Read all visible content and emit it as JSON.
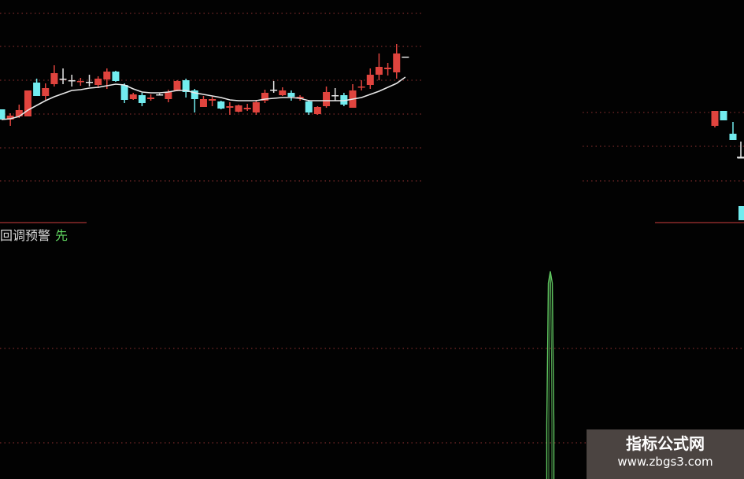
{
  "chart_data": [
    {
      "type": "candlestick",
      "grid": true,
      "colors": {
        "up": "#e0443e",
        "down": "#72ecef",
        "doji": "#e6e6e6",
        "ma": "#e8e8e8",
        "grid": "#7a2a2a",
        "background": "#020202"
      },
      "candles": [
        [
          6.1,
          6.1,
          4.8,
          4.8
        ],
        [
          4.8,
          5.6,
          4.0,
          5.3
        ],
        [
          5.2,
          6.7,
          5.0,
          6.0
        ],
        [
          5.2,
          8.5,
          5.2,
          8.5
        ],
        [
          9.5,
          10.0,
          7.8,
          7.8
        ],
        [
          7.8,
          9.4,
          7.3,
          8.8
        ],
        [
          9.3,
          11.7,
          9.0,
          10.7
        ],
        [
          10.0,
          11.3,
          9.3,
          10.0
        ],
        [
          9.8,
          10.5,
          9.0,
          9.8
        ],
        [
          9.6,
          10.1,
          9.1,
          9.7
        ],
        [
          9.6,
          10.5,
          9.0,
          9.6
        ],
        [
          9.2,
          10.3,
          8.8,
          10.0
        ],
        [
          9.9,
          11.3,
          8.7,
          10.9
        ],
        [
          10.9,
          11.0,
          9.6,
          9.7
        ],
        [
          9.2,
          9.4,
          6.9,
          7.3
        ],
        [
          7.4,
          8.2,
          7.3,
          8.0
        ],
        [
          7.9,
          8.2,
          6.5,
          6.9
        ],
        [
          7.4,
          8.0,
          7.2,
          7.6
        ],
        [
          8.0,
          8.1,
          7.9,
          8.0
        ],
        [
          7.4,
          8.6,
          7.0,
          8.3
        ],
        [
          8.5,
          9.8,
          8.4,
          9.7
        ],
        [
          9.8,
          10.0,
          7.6,
          8.3
        ],
        [
          8.5,
          8.7,
          5.7,
          7.4
        ],
        [
          6.4,
          7.8,
          6.4,
          7.4
        ],
        [
          7.2,
          7.7,
          6.5,
          7.4
        ],
        [
          7.1,
          7.2,
          6.1,
          6.2
        ],
        [
          6.3,
          7.0,
          5.4,
          6.5
        ],
        [
          5.8,
          6.7,
          5.7,
          6.6
        ],
        [
          6.1,
          6.8,
          5.9,
          6.3
        ],
        [
          5.7,
          7.3,
          5.4,
          7.0
        ],
        [
          7.2,
          8.6,
          6.9,
          8.2
        ],
        [
          8.6,
          9.7,
          8.2,
          8.6
        ],
        [
          7.9,
          8.9,
          7.8,
          8.5
        ],
        [
          8.2,
          8.5,
          7.2,
          7.7
        ],
        [
          7.5,
          7.9,
          7.2,
          7.7
        ],
        [
          7.1,
          7.3,
          5.4,
          5.7
        ],
        [
          5.5,
          6.5,
          5.4,
          6.4
        ],
        [
          6.5,
          9.0,
          6.3,
          8.3
        ],
        [
          7.9,
          8.8,
          7.2,
          7.9
        ],
        [
          7.9,
          8.2,
          6.5,
          6.7
        ],
        [
          6.3,
          9.3,
          6.3,
          8.5
        ],
        [
          8.9,
          9.8,
          8.5,
          9.0
        ],
        [
          9.2,
          11.3,
          8.7,
          10.5
        ],
        [
          10.5,
          13.2,
          9.8,
          11.5
        ],
        [
          11.2,
          12.0,
          10.4,
          11.4
        ],
        [
          10.8,
          14.4,
          10.0,
          13.2
        ],
        [
          12.8,
          12.8,
          12.8,
          12.8
        ]
      ],
      "candle_format": "open, high, low, close",
      "ma": [
        4.8,
        4.9,
        5.2,
        6.0,
        6.6,
        7.2,
        7.7,
        8.1,
        8.5,
        8.6,
        8.8,
        8.9,
        9.1,
        9.3,
        9.2,
        8.7,
        8.3,
        8.2,
        8.2,
        8.3,
        8.5,
        8.5,
        8.2,
        8.0,
        7.8,
        7.6,
        7.3,
        7.2,
        7.2,
        7.2,
        7.4,
        7.5,
        7.6,
        7.6,
        7.5,
        7.2,
        7.2,
        7.2,
        7.2,
        7.2,
        7.4,
        7.6,
        8.0,
        8.4,
        8.9,
        9.4,
        10.2
      ],
      "right_candles": [
        [
          4.0,
          5.9,
          3.8,
          5.9
        ],
        [
          5.9,
          5.9,
          4.7,
          4.7
        ],
        [
          3.0,
          4.5,
          2.2,
          2.2
        ],
        [
          0.0,
          2.0,
          0.0,
          0.0
        ]
      ]
    },
    {
      "type": "bar",
      "legend": {
        "name": "回调预警",
        "signal": "先"
      },
      "color": "#5fc55f",
      "values": [
        1
      ]
    }
  ],
  "watermark": {
    "title": "指标公式网",
    "url": "www.zbgs3.com"
  }
}
